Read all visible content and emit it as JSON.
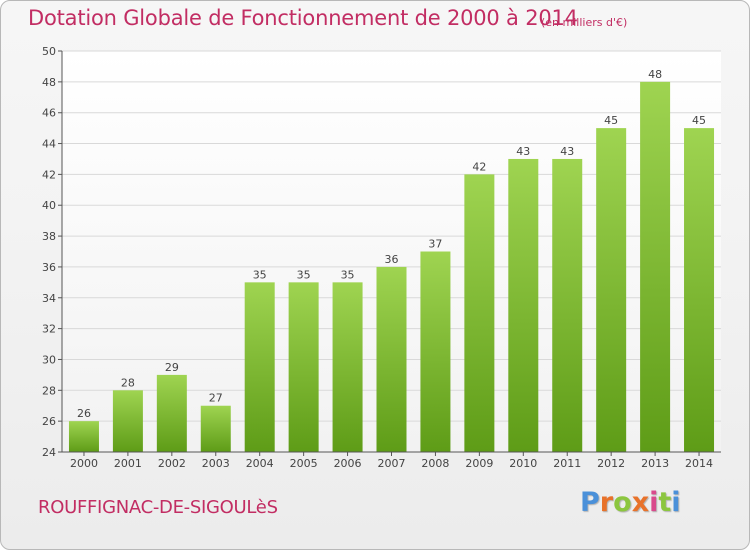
{
  "title": "Dotation Globale de Fonctionnement de 2000 à 2014",
  "subtitle": "(en milliers d'€)",
  "commune": "ROUFFIGNAC-DE-SIGOULèS",
  "logo": {
    "letters": [
      "P",
      "r",
      "o",
      "x",
      "i",
      "t",
      "i"
    ],
    "colors": [
      "#4a90d9",
      "#e8722a",
      "#8cc63f",
      "#e8722a",
      "#d94a8c",
      "#8cc63f",
      "#4a90d9"
    ]
  },
  "colors": {
    "bar_light": "#9fd451",
    "bar_dark": "#5e9c17",
    "title": "#c22d63",
    "grid": "#d9d9d9",
    "axis": "#555555"
  },
  "chart_data": {
    "type": "bar",
    "categories": [
      "2000",
      "2001",
      "2002",
      "2003",
      "2004",
      "2005",
      "2006",
      "2007",
      "2008",
      "2009",
      "2010",
      "2011",
      "2012",
      "2013",
      "2014"
    ],
    "values": [
      26,
      28,
      29,
      27,
      35,
      35,
      35,
      36,
      37,
      42,
      43,
      43,
      45,
      48,
      45
    ],
    "title": "Dotation Globale de Fonctionnement de 2000 à 2014",
    "ylim": [
      24,
      50
    ],
    "yticks": [
      24,
      26,
      28,
      30,
      32,
      34,
      36,
      38,
      40,
      42,
      44,
      46,
      48,
      50
    ],
    "grid": true,
    "data_labels": true
  }
}
